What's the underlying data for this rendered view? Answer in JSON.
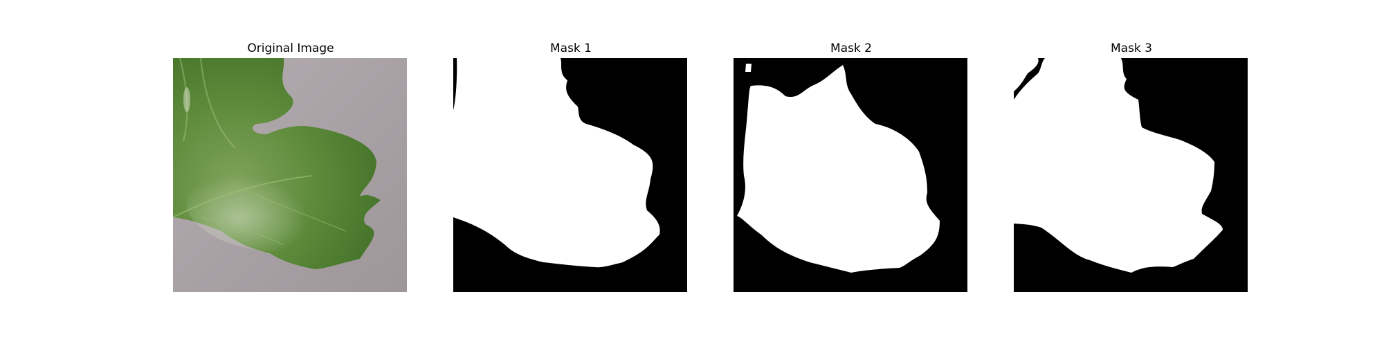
{
  "panels": [
    {
      "title": "Original Image",
      "kind": "photo"
    },
    {
      "title": "Mask 1",
      "kind": "mask"
    },
    {
      "title": "Mask 2",
      "kind": "mask"
    },
    {
      "title": "Mask 3",
      "kind": "mask"
    }
  ],
  "colors": {
    "background": "#ffffff",
    "mask_foreground": "#ffffff",
    "mask_background": "#000000",
    "leaf_dark": "#3c6a2a",
    "leaf_light": "#6f9a4a",
    "backdrop": "#a8a0a3"
  }
}
